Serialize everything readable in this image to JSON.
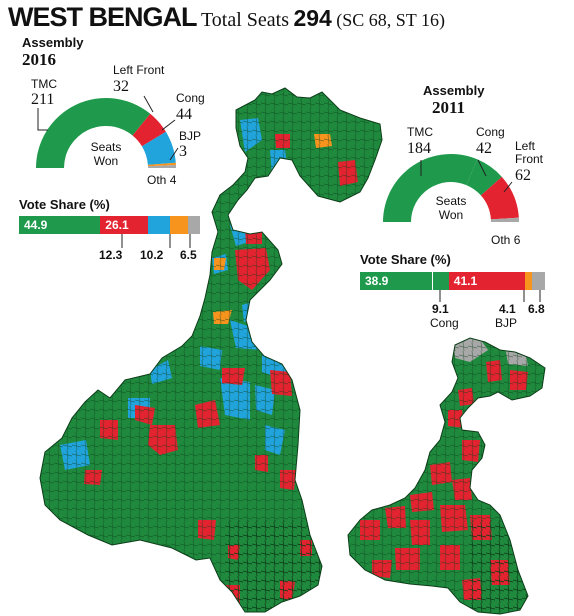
{
  "header": {
    "state": "WEST BENGAL",
    "total_label": "Total Seats",
    "total": "294",
    "reserved": "(SC 68, ST 16)"
  },
  "colors": {
    "tmc": "#1f9a4c",
    "left": "#e32330",
    "cong": "#21a3dc",
    "bjp": "#f7941d",
    "others": "#a8a8a8"
  },
  "a2016": {
    "title": "Assembly",
    "year": "2016",
    "center": "Seats\nWon",
    "parties": {
      "tmc": {
        "name": "TMC",
        "seats": "211"
      },
      "left": {
        "name": "Left Front",
        "seats": "32"
      },
      "cong": {
        "name": "Cong",
        "seats": "44"
      },
      "bjp": {
        "name": "BJP",
        "seats": "3"
      },
      "oth": {
        "name": "Oth",
        "seats": "4"
      }
    },
    "vote_title": "Vote Share (%)",
    "vote": {
      "tmc": "44.9",
      "left": "26.1",
      "cong": "12.3",
      "bjp": "10.2",
      "oth": "6.5"
    }
  },
  "a2011": {
    "title": "Assembly",
    "year": "2011",
    "center": "Seats\nWon",
    "parties": {
      "tmc": {
        "name": "TMC",
        "seats": "184"
      },
      "cong": {
        "name": "Cong",
        "seats": "42"
      },
      "left": {
        "name": "Left\nFront",
        "seats": "62"
      },
      "oth": {
        "name": "Oth",
        "seats": "6"
      }
    },
    "vote_title": "Vote Share (%)",
    "vote": {
      "tmc": "38.9",
      "left": "41.1",
      "cong": "9.1",
      "cong_name": "Cong",
      "bjp": "4.1",
      "bjp_name": "BJP",
      "oth": "6.8"
    }
  },
  "seat_data": {
    "2016": {
      "tmc": 211,
      "left": 32,
      "cong": 44,
      "bjp": 3,
      "oth": 4
    },
    "2011": {
      "tmc": 184,
      "cong": 42,
      "left": 62,
      "oth": 6
    }
  },
  "vote_data": {
    "2016": {
      "tmc": 44.9,
      "left": 26.1,
      "cong": 12.3,
      "bjp": 10.2,
      "oth": 6.5
    },
    "2011": {
      "tmc": 38.9,
      "left": 41.1,
      "cong": 9.1,
      "bjp": 4.1,
      "oth": 6.8
    }
  }
}
